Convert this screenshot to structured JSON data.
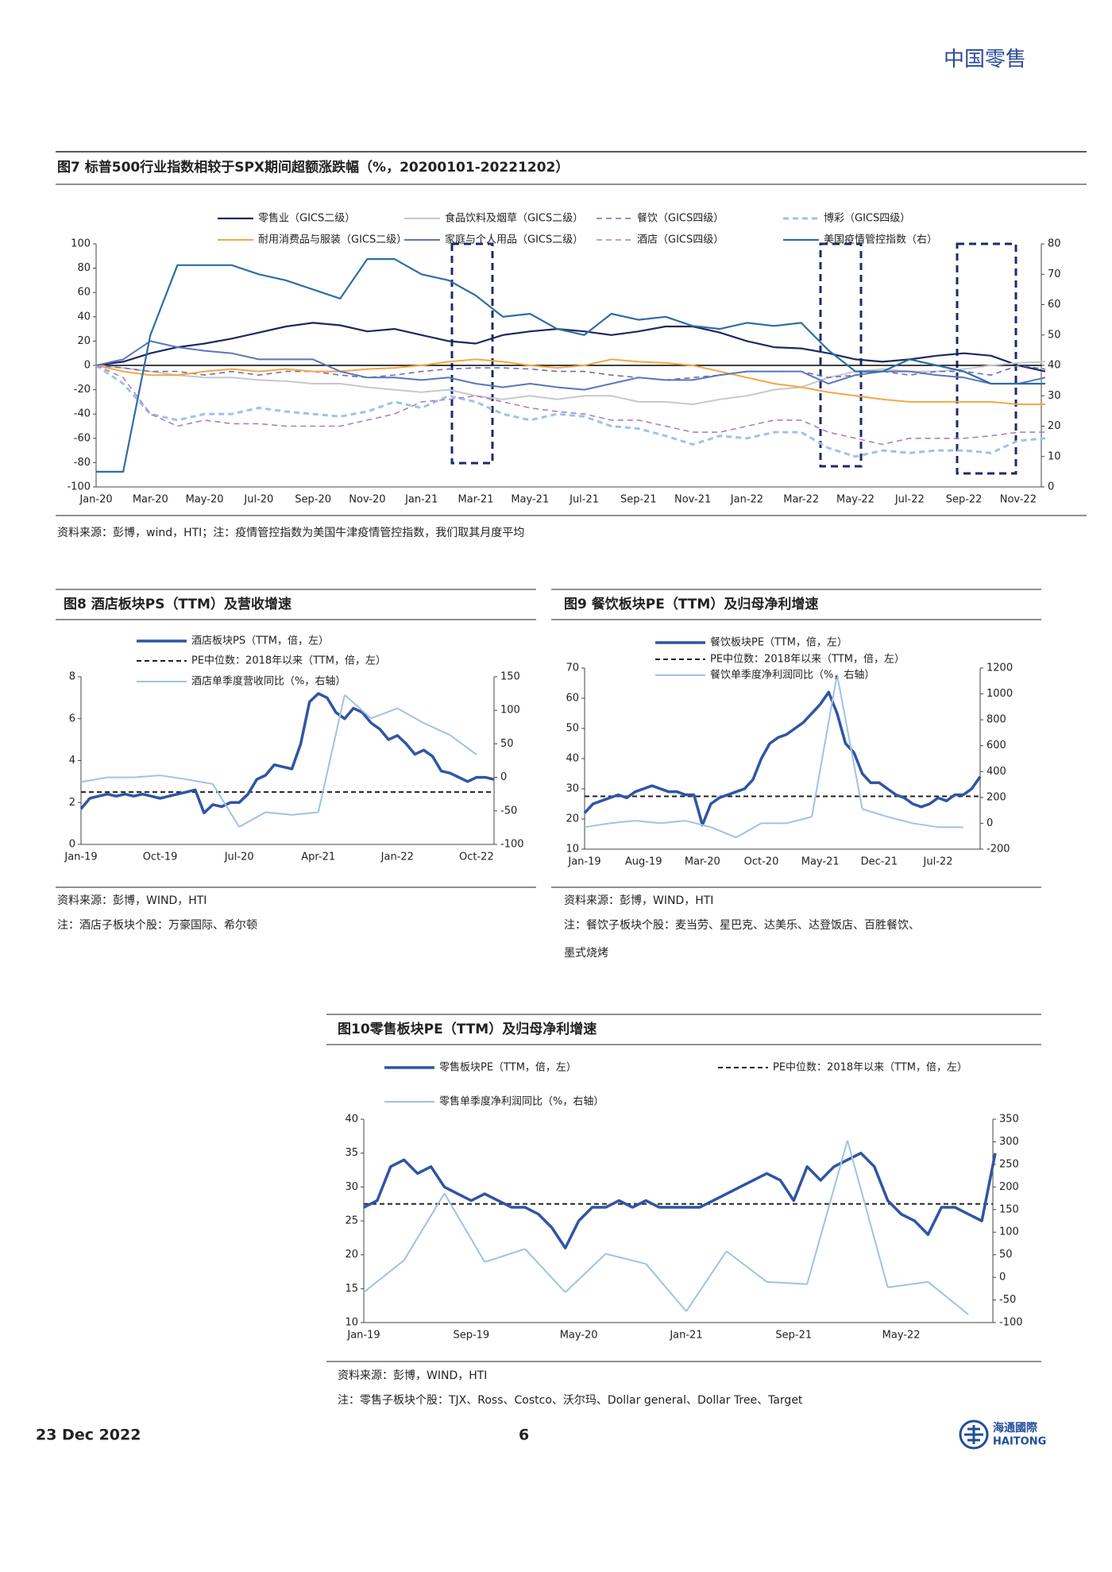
{
  "header": {
    "title": "中国零售"
  },
  "chart_data": [
    {
      "type": "line",
      "title": "图7  标普500行业指数相较于SPX期间超额涨跌幅（%，20200101-20221202）",
      "source": "资料来源：彭博，wind，HTI；注：疫情管控指数为美国牛津疫情管控指数，我们取其月度平均",
      "categories": [
        "Jan-20",
        null,
        "Mar-20",
        null,
        "May-20",
        null,
        "Jul-20",
        null,
        "Sep-20",
        null,
        "Nov-20",
        null,
        "Jan-21",
        null,
        "Mar-21",
        null,
        "May-21",
        null,
        "Jul-21",
        null,
        "Sep-21",
        null,
        "Nov-21",
        null,
        "Jan-22",
        null,
        "Mar-22",
        null,
        "May-22",
        null,
        "Jul-22",
        null,
        "Sep-22",
        null,
        "Nov-22",
        null
      ],
      "ylim": [
        -100,
        100
      ],
      "yticks": [
        -100,
        -80,
        -60,
        -40,
        -20,
        0,
        20,
        40,
        60,
        80,
        100
      ],
      "y2lim": [
        0,
        80
      ],
      "y2ticks": [
        0,
        10,
        20,
        30,
        40,
        50,
        60,
        70,
        80
      ],
      "zero_line": true,
      "series": [
        {
          "name": "零售业（GICS二级）",
          "color": "#1b2a5e",
          "values": [
            0,
            3,
            10,
            15,
            18,
            22,
            27,
            32,
            35,
            33,
            28,
            30,
            25,
            20,
            18,
            25,
            28,
            30,
            28,
            25,
            28,
            32,
            32,
            27,
            20,
            15,
            14,
            10,
            5,
            3,
            5,
            8,
            10,
            8,
            0,
            -5
          ]
        },
        {
          "name": "食品饮料及烟草（GICS二级）",
          "color": "#c8c8c8",
          "values": [
            0,
            -2,
            -5,
            -8,
            -10,
            -10,
            -12,
            -13,
            -15,
            -15,
            -18,
            -20,
            -22,
            -20,
            -25,
            -28,
            -25,
            -28,
            -25,
            -25,
            -30,
            -30,
            -32,
            -28,
            -25,
            -20,
            -18,
            -10,
            -5,
            -3,
            -5,
            -5,
            -3,
            0,
            2,
            3
          ]
        },
        {
          "name": "餐饮（GICS四级）",
          "color": "#6b6fb5",
          "dash": true,
          "values": [
            0,
            -2,
            -5,
            -5,
            -8,
            -5,
            -8,
            -5,
            -5,
            -8,
            -10,
            -8,
            -5,
            -3,
            -2,
            -2,
            -3,
            -5,
            -5,
            -8,
            -10,
            -12,
            -10,
            -8,
            -5,
            -5,
            -5,
            -10,
            -8,
            -5,
            -8,
            -5,
            -5,
            -8,
            0,
            -3
          ]
        },
        {
          "name": "博彩（GICS四级）",
          "color": "#9dc3e6",
          "dash": true,
          "values": [
            0,
            -15,
            -40,
            -45,
            -40,
            -40,
            -35,
            -38,
            -40,
            -42,
            -38,
            -30,
            -35,
            -25,
            -30,
            -40,
            -45,
            -40,
            -42,
            -50,
            -52,
            -58,
            -65,
            -58,
            -60,
            -55,
            -55,
            -68,
            -75,
            -70,
            -72,
            -70,
            -70,
            -72,
            -62,
            -60
          ]
        },
        {
          "name": "耐用消费品与服装（GICS二级）",
          "color": "#f5a742",
          "values": [
            0,
            -5,
            -8,
            -8,
            -5,
            -3,
            -5,
            -3,
            -5,
            -5,
            -3,
            -2,
            0,
            3,
            5,
            3,
            0,
            -2,
            0,
            5,
            3,
            2,
            0,
            -5,
            -10,
            -15,
            -18,
            -22,
            -25,
            -28,
            -30,
            -30,
            -30,
            -30,
            -32,
            -32
          ]
        },
        {
          "name": "家庭与个人用品（GICS二级）",
          "color": "#5b75bd",
          "values": [
            0,
            5,
            20,
            15,
            12,
            10,
            5,
            5,
            5,
            -5,
            -10,
            -10,
            -12,
            -10,
            -15,
            -18,
            -15,
            -18,
            -20,
            -15,
            -10,
            -12,
            -12,
            -8,
            -5,
            -5,
            -5,
            -15,
            -8,
            -5,
            -5,
            -8,
            -10,
            -15,
            -15,
            -10
          ]
        },
        {
          "name": "酒店（GICS四级）",
          "color": "#b07cc6",
          "dash": true,
          "values": [
            0,
            -10,
            -40,
            -50,
            -45,
            -48,
            -48,
            -50,
            -50,
            -50,
            -45,
            -40,
            -30,
            -28,
            -25,
            -30,
            -35,
            -38,
            -40,
            -45,
            -45,
            -50,
            -55,
            -55,
            -50,
            -45,
            -45,
            -55,
            -60,
            -65,
            -60,
            -60,
            -60,
            -58,
            -55,
            -55
          ]
        },
        {
          "name": "美国疫情管控指数（右）",
          "color": "#2e6ea6",
          "axis": "y2",
          "values": [
            5,
            5,
            50,
            73,
            73,
            73,
            70,
            68,
            65,
            62,
            75,
            75,
            70,
            68,
            63,
            56,
            57,
            52,
            50,
            57,
            55,
            56,
            53,
            52,
            54,
            53,
            54,
            45,
            38,
            38,
            42,
            40,
            38,
            34,
            34,
            34
          ]
        }
      ]
    },
    {
      "type": "line",
      "title": "图8  酒店板块PS（TTM）及营收增速",
      "source": "资料来源：彭博，WIND，HTI",
      "note": [
        "注：酒店子板块个股：万豪国际、希尔顿"
      ],
      "categories": [
        "Jan-19",
        null,
        null,
        null,
        null,
        null,
        null,
        null,
        null,
        "Oct-19",
        null,
        null,
        null,
        null,
        null,
        null,
        null,
        null,
        "Jul-20",
        null,
        null,
        null,
        null,
        null,
        null,
        null,
        null,
        "Apr-21",
        null,
        null,
        null,
        null,
        null,
        null,
        null,
        null,
        "Jan-22",
        null,
        null,
        null,
        null,
        null,
        null,
        null,
        null,
        "Oct-22",
        null,
        null
      ],
      "ylim": [
        0,
        8
      ],
      "yticks": [
        0,
        2,
        4,
        6,
        8
      ],
      "y2lim": [
        -100,
        150
      ],
      "y2ticks": [
        -100,
        -50,
        0,
        50,
        100,
        150
      ],
      "reference": {
        "name": "PE中位数：2018年以来（TTM，倍，左）",
        "value": 2.5,
        "color": "#222222"
      },
      "series": [
        {
          "name": "酒店板块PS（TTM，倍，左）",
          "color": "#2f55a4",
          "values": [
            1.7,
            2.2,
            2.3,
            2.4,
            2.3,
            2.4,
            2.3,
            2.4,
            2.3,
            2.2,
            2.3,
            2.4,
            2.5,
            2.6,
            1.5,
            1.9,
            1.8,
            2.0,
            2.0,
            2.4,
            3.1,
            3.3,
            3.8,
            3.7,
            3.6,
            4.8,
            6.8,
            7.2,
            7.0,
            6.3,
            6.0,
            6.5,
            6.3,
            5.8,
            5.5,
            5.0,
            5.2,
            4.8,
            4.3,
            4.5,
            4.2,
            3.5,
            3.4,
            3.2,
            3.0,
            3.2,
            3.2,
            3.1
          ]
        },
        {
          "name": "酒店单季度营收同比（%，右轴）",
          "color": "#9dc3e6",
          "axis": "y2",
          "connect_gaps": true,
          "values": [
            -7,
            null,
            null,
            0,
            null,
            null,
            0,
            null,
            null,
            3,
            null,
            null,
            -3,
            null,
            null,
            -10,
            null,
            null,
            -74,
            null,
            null,
            -52,
            null,
            null,
            -56,
            null,
            null,
            -52,
            null,
            null,
            123,
            null,
            null,
            88,
            null,
            null,
            103,
            null,
            null,
            81,
            null,
            null,
            63,
            null,
            null,
            34,
            null,
            null
          ]
        }
      ]
    },
    {
      "type": "line",
      "title": "图9  餐饮板块PE（TTM）及归母净利增速",
      "source": "资料来源：彭博，WIND，HTI",
      "note": [
        "注：餐饮子板块个股：麦当劳、星巴克、达美乐、达登饭店、百胜餐饮、",
        "墨式烧烤"
      ],
      "categories": [
        "Jan-19",
        null,
        null,
        null,
        null,
        null,
        null,
        "Aug-19",
        null,
        null,
        null,
        null,
        null,
        null,
        "Mar-20",
        null,
        null,
        null,
        null,
        null,
        null,
        "Oct-20",
        null,
        null,
        null,
        null,
        null,
        null,
        "May-21",
        null,
        null,
        null,
        null,
        null,
        null,
        "Dec-21",
        null,
        null,
        null,
        null,
        null,
        null,
        "Jul-22",
        null,
        null,
        null,
        null,
        null
      ],
      "ylim": [
        10,
        70
      ],
      "yticks": [
        10,
        20,
        30,
        40,
        50,
        60,
        70
      ],
      "y2lim": [
        -200,
        1200
      ],
      "y2ticks": [
        -200,
        0,
        200,
        400,
        600,
        800,
        1000,
        1200
      ],
      "reference": {
        "name": "PE中位数：2018年以来（TTM，倍，左）",
        "value": 27.5,
        "color": "#222222"
      },
      "series": [
        {
          "name": "餐饮板块PE（TTM，倍，左）",
          "color": "#2f55a4",
          "values": [
            22,
            25,
            26,
            27,
            28,
            27,
            29,
            30,
            31,
            30,
            29,
            29,
            28,
            28,
            18,
            25,
            27,
            28,
            29,
            30,
            33,
            40,
            45,
            47,
            48,
            50,
            52,
            55,
            58,
            62,
            55,
            45,
            42,
            35,
            32,
            32,
            30,
            28,
            27,
            25,
            24,
            25,
            27,
            26,
            28,
            28,
            30,
            34
          ]
        },
        {
          "name": "餐饮单季度净利润同比（%，右轴）",
          "color": "#9dc3e6",
          "axis": "y2",
          "connect_gaps": true,
          "values": [
            -30,
            null,
            null,
            0,
            null,
            null,
            20,
            null,
            null,
            0,
            null,
            null,
            20,
            null,
            null,
            -30,
            null,
            null,
            -110,
            null,
            null,
            0,
            null,
            null,
            0,
            null,
            null,
            50,
            null,
            null,
            1150,
            null,
            null,
            110,
            null,
            null,
            50,
            null,
            null,
            0,
            null,
            null,
            -30,
            null,
            null,
            -30,
            null,
            null
          ]
        }
      ]
    },
    {
      "type": "line",
      "title": "图10零售板块PE（TTM）及归母净利增速",
      "source": "资料来源：彭博，WIND，HTI",
      "note": [
        "注：零售子板块个股：TJX、Ross、Costco、沃尔玛、Dollar general、Dollar Tree、Target"
      ],
      "categories": [
        "Jan-19",
        null,
        null,
        null,
        null,
        null,
        null,
        null,
        "Sep-19",
        null,
        null,
        null,
        null,
        null,
        null,
        null,
        "May-20",
        null,
        null,
        null,
        null,
        null,
        null,
        null,
        "Jan-21",
        null,
        null,
        null,
        null,
        null,
        null,
        null,
        "Sep-21",
        null,
        null,
        null,
        null,
        null,
        null,
        null,
        "May-22",
        null,
        null,
        null,
        null,
        null,
        null,
        null
      ],
      "ylim": [
        10,
        40
      ],
      "yticks": [
        10,
        15,
        20,
        25,
        30,
        35,
        40
      ],
      "y2lim": [
        -100,
        350
      ],
      "y2ticks": [
        -100,
        -50,
        0,
        50,
        100,
        150,
        200,
        250,
        300,
        350
      ],
      "reference": {
        "name": "PE中位数：2018年以来（TTM，倍，左）",
        "value": 27.5,
        "color": "#222222"
      },
      "series": [
        {
          "name": "零售板块PE（TTM，倍，左）",
          "color": "#2f55a4",
          "values": [
            27,
            28,
            33,
            34,
            32,
            33,
            30,
            29,
            28,
            29,
            28,
            27,
            27,
            26,
            24,
            21,
            25,
            27,
            27,
            28,
            27,
            28,
            27,
            27,
            27,
            27,
            28,
            29,
            30,
            31,
            32,
            31,
            28,
            33,
            31,
            33,
            34,
            35,
            33,
            28,
            26,
            25,
            23,
            27,
            27,
            26,
            25,
            35
          ]
        },
        {
          "name": "零售单季度净利润同比（%，右轴）",
          "color": "#9dc3e6",
          "axis": "y2",
          "connect_gaps": true,
          "values": [
            -33,
            null,
            null,
            38,
            null,
            null,
            186,
            null,
            null,
            34,
            null,
            null,
            63,
            null,
            null,
            -33,
            null,
            null,
            52,
            null,
            null,
            30,
            null,
            null,
            -75,
            null,
            null,
            58,
            null,
            null,
            -10,
            null,
            null,
            -15,
            null,
            null,
            303,
            null,
            null,
            -22,
            null,
            null,
            -10,
            null,
            null,
            -82,
            null,
            null
          ]
        }
      ]
    }
  ],
  "footer": {
    "date": "23 Dec 2022",
    "page": "6",
    "logo_cn": "海通國際",
    "logo_en": "HAITONG"
  }
}
